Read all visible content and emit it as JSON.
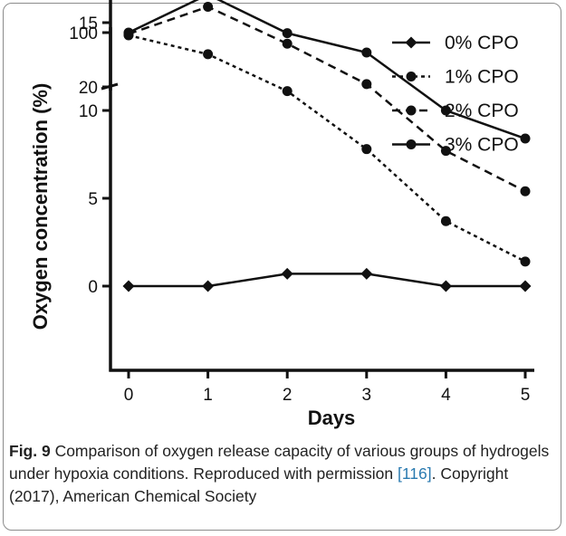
{
  "chart_data": {
    "type": "line",
    "xlabel": "Days",
    "ylabel": "Oxygen concentration (%)",
    "x": [
      0,
      1,
      2,
      3,
      4,
      5
    ],
    "xticks": [
      "0",
      "1",
      "2",
      "3",
      "4",
      "5"
    ],
    "y_axis": {
      "broken": true,
      "lower_segment": {
        "range": [
          0,
          20
        ],
        "ticks": [
          "0",
          "5",
          "10",
          "15",
          "20"
        ]
      },
      "upper_segment": {
        "range": [
          20,
          100
        ],
        "ticks": [
          "20",
          "100"
        ]
      }
    },
    "legend_position": "top-right",
    "series": [
      {
        "name": "0% CPO",
        "marker": "diamond",
        "line_style": "solid",
        "values": [
          0,
          0,
          0.7,
          0.7,
          0,
          0
        ]
      },
      {
        "name": "1% CPO",
        "marker": "circle",
        "line_style": "dotted",
        "values": [
          96,
          13.2,
          11.1,
          7.8,
          3.7,
          1.4
        ]
      },
      {
        "name": "2% CPO",
        "marker": "circle",
        "line_style": "dashed",
        "values": [
          98,
          15.9,
          13.8,
          11.5,
          7.7,
          5.4
        ]
      },
      {
        "name": "3% CPO",
        "marker": "circle",
        "line_style": "solid",
        "values": [
          100,
          16.6,
          14.4,
          13.3,
          10.0,
          8.4
        ]
      }
    ]
  },
  "caption": {
    "fig_label": "Fig. 9",
    "text_before_ref": " Comparison of oxygen release capacity of various groups of hydrogels under hypoxia conditions. Reproduced with permission ",
    "ref": "[116]",
    "text_after_ref": ". Copyright (2017), American Chemical Society"
  }
}
